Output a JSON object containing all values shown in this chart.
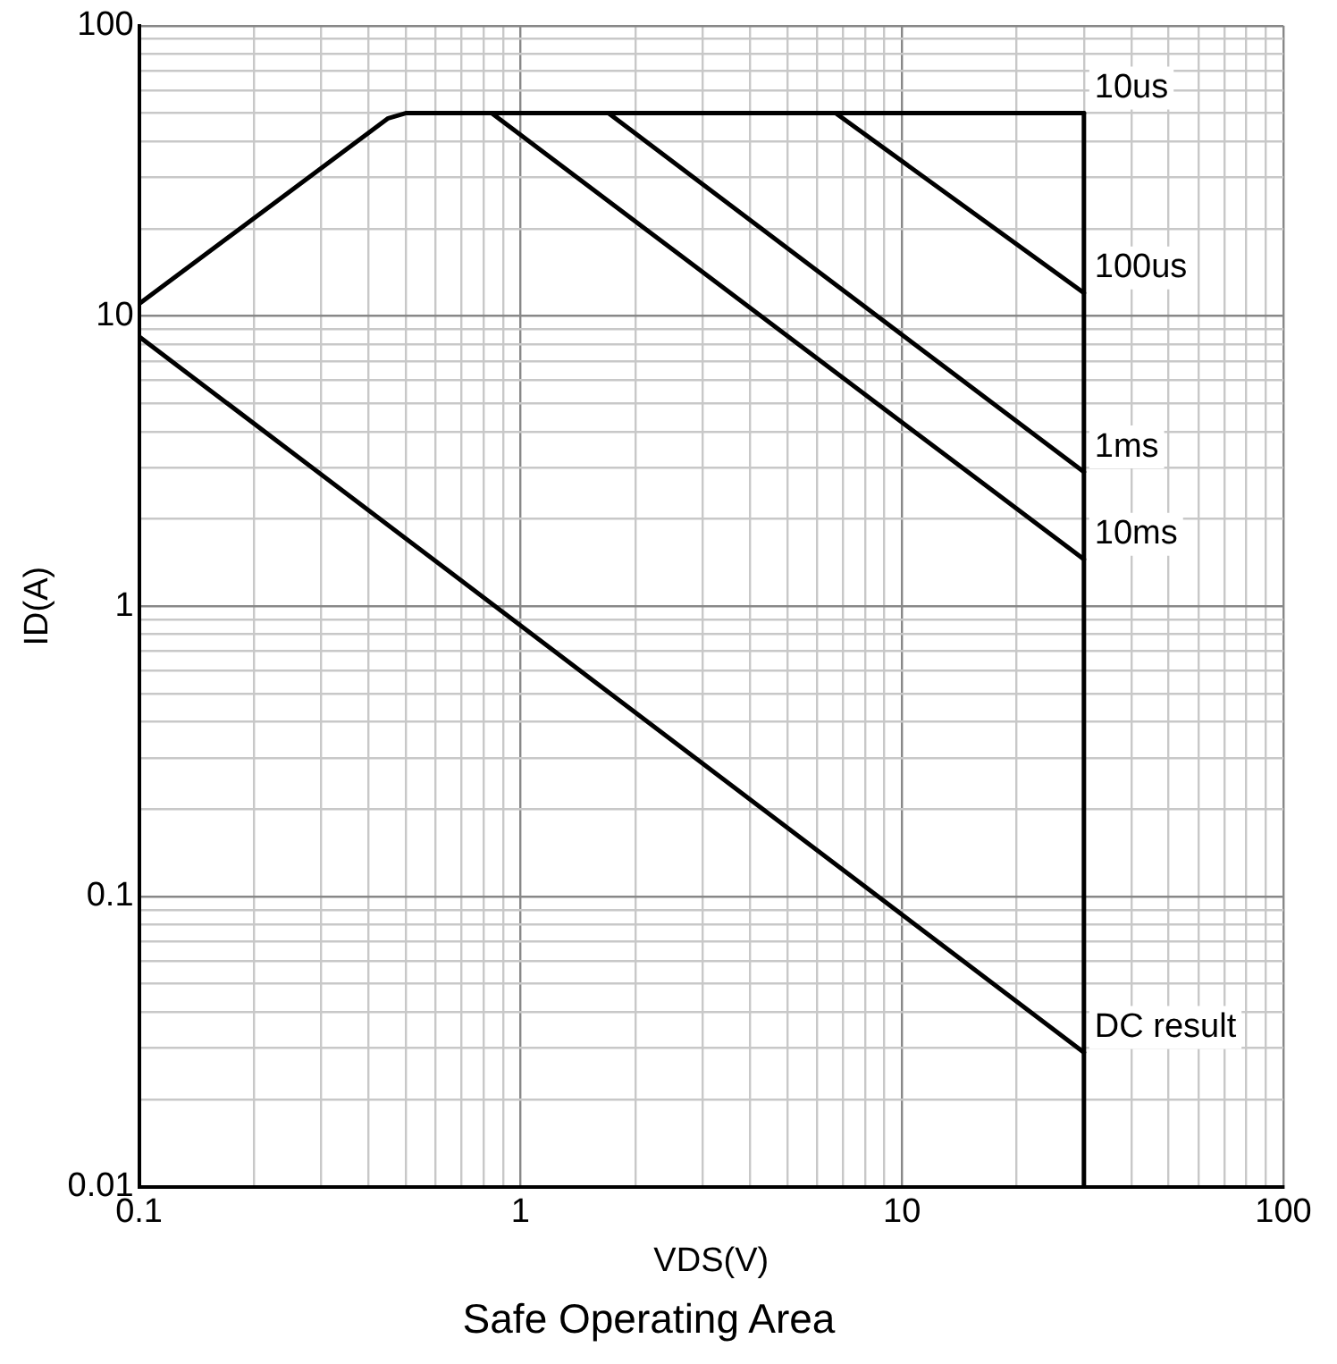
{
  "chart_data": {
    "type": "line",
    "title": "Safe Operating Area",
    "xlabel": "VDS(V)",
    "ylabel": "ID(A)",
    "log": "xy",
    "grid": true,
    "legend": false,
    "marker": "none",
    "line_style": "solid",
    "xlim": [
      0.1,
      100
    ],
    "xticks": [
      0.1,
      1,
      10,
      100
    ],
    "ylim": [
      0.01,
      100
    ],
    "yticks": [
      0.01,
      0.1,
      1,
      10,
      100
    ],
    "series": [
      {
        "name": "10us",
        "color": "#000000",
        "x": [
          0.1,
          0.45,
          0.5,
          30
        ],
        "values": [
          11,
          48,
          50,
          50
        ]
      },
      {
        "name": "100us",
        "color": "#000000",
        "x": [
          6.7,
          30
        ],
        "values": [
          50,
          12
        ]
      },
      {
        "name": "1ms",
        "color": "#000000",
        "x": [
          1.7,
          30
        ],
        "values": [
          50,
          2.9
        ]
      },
      {
        "name": "10ms",
        "color": "#000000",
        "x": [
          0.84,
          30
        ],
        "values": [
          50,
          1.45
        ]
      },
      {
        "name": "DC result",
        "color": "#000000",
        "x": [
          0.1,
          30
        ],
        "values": [
          8.5,
          0.029
        ]
      },
      {
        "color": "#000000",
        "x": [
          30,
          30
        ],
        "values": [
          50,
          0.01
        ]
      }
    ]
  }
}
